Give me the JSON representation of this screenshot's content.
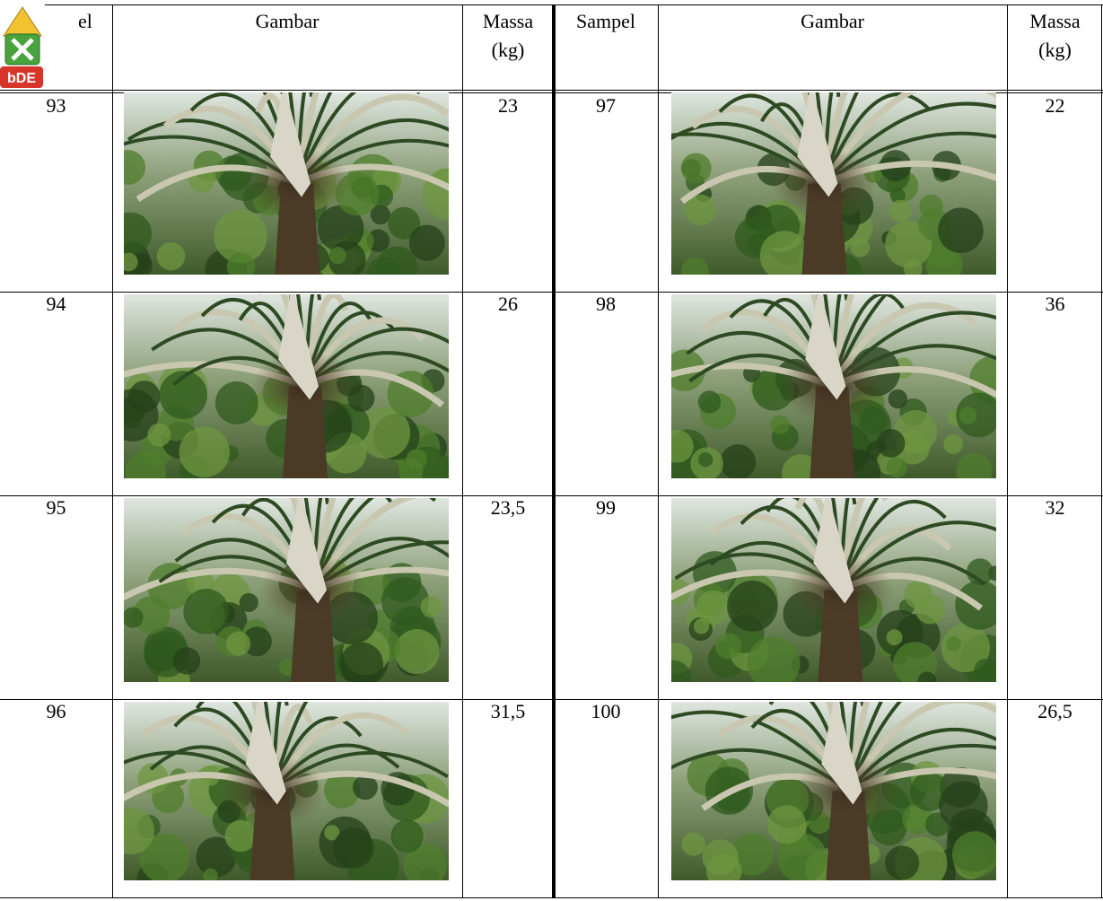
{
  "header": {
    "columns": [
      "el",
      "Gambar",
      "Massa (kg)",
      "Sampel",
      "Gambar",
      "Massa (kg)"
    ]
  },
  "table": {
    "rows": [
      [
        "93",
        "23",
        "97",
        "22"
      ],
      [
        "94",
        "26",
        "98",
        "36"
      ],
      [
        "95",
        "23,5",
        "99",
        "32"
      ],
      [
        "96",
        "31,5",
        "100",
        "26,5"
      ]
    ]
  }
}
